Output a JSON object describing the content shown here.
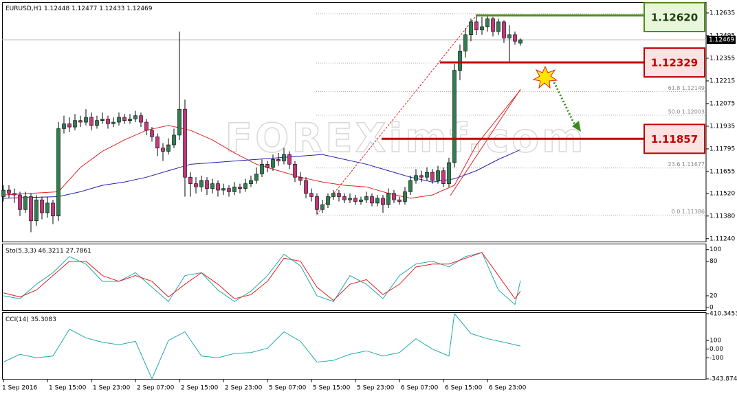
{
  "chart_data": [
    {
      "type": "candlestick",
      "title": "EURUSD,H1",
      "watermark": "FOREXimf.com",
      "ylim": [
        1.11222,
        1.12694
      ],
      "yticks": [
        1.12635,
        1.12495,
        1.12355,
        1.12215,
        1.12075,
        1.11935,
        1.11795,
        1.11655,
        {
          "value": 1.1152,
          "label": "1.11520"
        },
        {
          "value": 1.1138,
          "label": "1.11380"
        },
        {
          "value": 1.1124,
          "label": "1.11240"
        }
      ],
      "up_color": "#2e7d4f",
      "down_color": "#c8357a",
      "ohlc": [
        [
          1.115,
          1.1157,
          1.1147,
          1.1154
        ],
        [
          1.1154,
          1.1157,
          1.1149,
          1.1152
        ],
        [
          1.1152,
          1.1155,
          1.1146,
          1.1151
        ],
        [
          1.1151,
          1.1153,
          1.1138,
          1.1142
        ],
        [
          1.1142,
          1.1153,
          1.114,
          1.115
        ],
        [
          1.115,
          1.1152,
          1.1128,
          1.1135
        ],
        [
          1.1135,
          1.1151,
          1.1132,
          1.1148
        ],
        [
          1.1148,
          1.115,
          1.1136,
          1.114
        ],
        [
          1.114,
          1.115,
          1.1137,
          1.1146
        ],
        [
          1.1146,
          1.1148,
          1.1133,
          1.1138
        ],
        [
          1.1138,
          1.1196,
          1.1135,
          1.1192
        ],
        [
          1.1192,
          1.12,
          1.1189,
          1.1195
        ],
        [
          1.1195,
          1.1199,
          1.119,
          1.1193
        ],
        [
          1.1193,
          1.1201,
          1.1191,
          1.1197
        ],
        [
          1.1197,
          1.12,
          1.1193,
          1.1196
        ],
        [
          1.1196,
          1.1204,
          1.1194,
          1.1199
        ],
        [
          1.1199,
          1.1202,
          1.1191,
          1.1194
        ],
        [
          1.1194,
          1.12,
          1.1192,
          1.1197
        ],
        [
          1.1197,
          1.1202,
          1.1195,
          1.1198
        ],
        [
          1.1198,
          1.12,
          1.1192,
          1.1195
        ],
        [
          1.1195,
          1.1199,
          1.1193,
          1.1196
        ],
        [
          1.1196,
          1.1202,
          1.1194,
          1.1199
        ],
        [
          1.1199,
          1.1201,
          1.1195,
          1.1197
        ],
        [
          1.1197,
          1.1201,
          1.1195,
          1.1198
        ],
        [
          1.1198,
          1.1203,
          1.1196,
          1.12
        ],
        [
          1.12,
          1.1202,
          1.1193,
          1.1196
        ],
        [
          1.1196,
          1.1198,
          1.1188,
          1.1191
        ],
        [
          1.1191,
          1.1193,
          1.1184,
          1.1187
        ],
        [
          1.1187,
          1.1189,
          1.1175,
          1.118
        ],
        [
          1.118,
          1.1183,
          1.1172,
          1.1178
        ],
        [
          1.1178,
          1.1186,
          1.1176,
          1.1182
        ],
        [
          1.1182,
          1.1192,
          1.118,
          1.1188
        ],
        [
          1.1188,
          1.1252,
          1.1185,
          1.1204
        ],
        [
          1.1204,
          1.121,
          1.115,
          1.1162
        ],
        [
          1.1162,
          1.1165,
          1.115,
          1.1158
        ],
        [
          1.1158,
          1.1162,
          1.1152,
          1.1156
        ],
        [
          1.1156,
          1.1163,
          1.1153,
          1.116
        ],
        [
          1.116,
          1.1162,
          1.1151,
          1.1155
        ],
        [
          1.1155,
          1.1161,
          1.1152,
          1.1158
        ],
        [
          1.1158,
          1.116,
          1.115,
          1.1154
        ],
        [
          1.1154,
          1.1158,
          1.1151,
          1.1155
        ],
        [
          1.1155,
          1.1157,
          1.115,
          1.1153
        ],
        [
          1.1153,
          1.1159,
          1.1151,
          1.1156
        ],
        [
          1.1156,
          1.1158,
          1.1152,
          1.1155
        ],
        [
          1.1155,
          1.1161,
          1.1153,
          1.1158
        ],
        [
          1.1158,
          1.1163,
          1.1156,
          1.116
        ],
        [
          1.116,
          1.1168,
          1.1158,
          1.1164
        ],
        [
          1.1164,
          1.1173,
          1.1162,
          1.117
        ],
        [
          1.117,
          1.1172,
          1.1165,
          1.1168
        ],
        [
          1.1168,
          1.1176,
          1.1166,
          1.1173
        ],
        [
          1.1173,
          1.1177,
          1.1169,
          1.1172
        ],
        [
          1.1172,
          1.118,
          1.117,
          1.1176
        ],
        [
          1.1176,
          1.1178,
          1.1167,
          1.117
        ],
        [
          1.117,
          1.1172,
          1.1159,
          1.1162
        ],
        [
          1.1162,
          1.1165,
          1.1157,
          1.116
        ],
        [
          1.116,
          1.1162,
          1.1149,
          1.1152
        ],
        [
          1.1152,
          1.1155,
          1.1147,
          1.115
        ],
        [
          1.115,
          1.1152,
          1.1139,
          1.1142
        ],
        [
          1.1142,
          1.1148,
          1.114,
          1.1145
        ],
        [
          1.1145,
          1.1152,
          1.1143,
          1.115
        ],
        [
          1.115,
          1.1154,
          1.1148,
          1.1152
        ],
        [
          1.1152,
          1.1154,
          1.1147,
          1.115
        ],
        [
          1.115,
          1.1152,
          1.1146,
          1.1148
        ],
        [
          1.1148,
          1.1152,
          1.1146,
          1.1149
        ],
        [
          1.1149,
          1.1151,
          1.1145,
          1.1147
        ],
        [
          1.1147,
          1.115,
          1.1145,
          1.1148
        ],
        [
          1.1148,
          1.1153,
          1.1146,
          1.115
        ],
        [
          1.115,
          1.1152,
          1.1144,
          1.1146
        ],
        [
          1.1146,
          1.1151,
          1.1144,
          1.1149
        ],
        [
          1.1149,
          1.1151,
          1.114,
          1.1145
        ],
        [
          1.1145,
          1.1155,
          1.1143,
          1.1152
        ],
        [
          1.1152,
          1.1154,
          1.1146,
          1.1148
        ],
        [
          1.1148,
          1.115,
          1.1145,
          1.1147
        ],
        [
          1.1147,
          1.1156,
          1.1145,
          1.1153
        ],
        [
          1.1153,
          1.1163,
          1.1151,
          1.116
        ],
        [
          1.116,
          1.1167,
          1.1158,
          1.1163
        ],
        [
          1.1163,
          1.1166,
          1.1159,
          1.1162
        ],
        [
          1.1162,
          1.1168,
          1.116,
          1.1165
        ],
        [
          1.1165,
          1.1167,
          1.1158,
          1.116
        ],
        [
          1.116,
          1.1169,
          1.1158,
          1.1166
        ],
        [
          1.1166,
          1.1168,
          1.1156,
          1.1158
        ],
        [
          1.1158,
          1.1174,
          1.1156,
          1.1171
        ],
        [
          1.1171,
          1.1232,
          1.1168,
          1.1228
        ],
        [
          1.1228,
          1.1244,
          1.1222,
          1.124
        ],
        [
          1.124,
          1.1254,
          1.1236,
          1.125
        ],
        [
          1.125,
          1.126,
          1.1246,
          1.1258
        ],
        [
          1.1258,
          1.1262,
          1.125,
          1.1253
        ],
        [
          1.1253,
          1.1261,
          1.125,
          1.1255
        ],
        [
          1.1255,
          1.1262,
          1.1252,
          1.126
        ],
        [
          1.126,
          1.1261,
          1.1249,
          1.1252
        ],
        [
          1.1252,
          1.126,
          1.125,
          1.1258
        ],
        [
          1.1258,
          1.1259,
          1.1245,
          1.1248
        ],
        [
          1.1248,
          1.1256,
          1.1233,
          1.125
        ],
        [
          1.125,
          1.1252,
          1.1244,
          1.1246
        ],
        [
          1.12448,
          1.12477,
          1.12433,
          1.12469
        ]
      ],
      "ma_x": [
        0,
        10,
        14,
        18,
        22,
        26,
        30,
        34,
        38,
        42,
        46,
        50,
        54,
        58,
        62,
        66,
        70,
        74,
        78,
        82,
        86,
        90,
        94
      ],
      "series": [
        {
          "color": "#e02020",
          "values": [
            1.1151,
            1.1153,
            1.1168,
            1.1178,
            1.1185,
            1.1191,
            1.1194,
            1.1191,
            1.1185,
            1.1177,
            1.117,
            1.1166,
            1.1162,
            1.1159,
            1.1157,
            1.1156,
            1.1152,
            1.1149,
            1.1151,
            1.1157,
            1.1182,
            1.1199,
            1.1216
          ]
        },
        {
          "color": "#2020b0",
          "values": [
            1.1149,
            1.115,
            1.1153,
            1.1157,
            1.1159,
            1.1162,
            1.1166,
            1.117,
            1.1171,
            1.1172,
            1.1173,
            1.1174,
            1.1175,
            1.1176,
            1.1173,
            1.117,
            1.1166,
            1.1162,
            1.1159,
            1.1161,
            1.1166,
            1.1173,
            1.1179
          ]
        }
      ],
      "fib_levels": [
        {
          "value": 1.12149,
          "label": "61.8 1.12149"
        },
        {
          "value": 1.12003,
          "label": "50.0 1.12003"
        },
        {
          "value": 1.11677,
          "label": "23.6 1.11677"
        },
        {
          "value": 1.11386,
          "label": "0.0 1.11386"
        }
      ],
      "annotations": [
        {
          "value": 1.1262,
          "label": "1.12620",
          "color": "#4f8a1e",
          "fill": "#e8f6dc"
        },
        {
          "value": 1.12329,
          "label": "1.12329",
          "color": "#c00000",
          "fill": "#fde2e2"
        },
        {
          "value": 1.11857,
          "label": "1.11857",
          "color": "#c00000",
          "fill": "#fde2e2"
        }
      ]
    },
    {
      "type": "line",
      "title": "Sto(5,3,3)",
      "ylim": [
        -5,
        108
      ],
      "yticks": [
        100,
        80,
        20,
        0
      ],
      "x": [
        0,
        3,
        6,
        9,
        12,
        15,
        18,
        21,
        24,
        27,
        30,
        33,
        36,
        39,
        42,
        45,
        48,
        51,
        54,
        57,
        60,
        63,
        66,
        69,
        72,
        75,
        78,
        81,
        84,
        87,
        90,
        93,
        94
      ],
      "series": [
        {
          "color": "#20a8b0",
          "values": [
            20,
            15,
            40,
            60,
            88,
            75,
            45,
            45,
            60,
            35,
            10,
            55,
            60,
            30,
            10,
            28,
            55,
            92,
            72,
            20,
            10,
            55,
            40,
            15,
            55,
            75,
            80,
            70,
            88,
            95,
            30,
            5,
            46.3211
          ]
        },
        {
          "color": "#e02020",
          "values": [
            25,
            18,
            30,
            55,
            80,
            80,
            55,
            45,
            55,
            45,
            18,
            40,
            60,
            40,
            15,
            22,
            45,
            85,
            80,
            35,
            12,
            40,
            48,
            22,
            40,
            70,
            75,
            75,
            85,
            95,
            55,
            15,
            27.7861
          ]
        }
      ]
    },
    {
      "type": "line",
      "title": "CCI(14)",
      "ylim": [
        -343.8741,
        410.3453
      ],
      "yticks": [
        410.3453,
        100,
        {
          "value": 0,
          "label": "0.00"
        },
        -100,
        -343.8741
      ],
      "x": [
        0,
        3,
        6,
        9,
        12,
        15,
        18,
        21,
        24,
        27,
        30,
        33,
        36,
        39,
        42,
        45,
        48,
        51,
        54,
        57,
        60,
        63,
        66,
        69,
        72,
        75,
        78,
        81,
        82,
        85,
        88,
        91,
        94
      ],
      "series": [
        {
          "color": "#20a8b0",
          "values": [
            -150,
            -60,
            -100,
            -80,
            230,
            130,
            80,
            50,
            90,
            -343.8741,
            100,
            200,
            -80,
            -100,
            -50,
            -40,
            10,
            200,
            90,
            -150,
            -130,
            -60,
            -20,
            -80,
            -40,
            120,
            0,
            -80,
            410.3453,
            180,
            120,
            80,
            35.3083
          ]
        }
      ],
      "xticks": [
        {
          "value": 0,
          "label": "1 Sep 2016"
        },
        {
          "value": 8,
          "label": "1 Sep 15:00"
        },
        {
          "value": 16,
          "label": "1 Sep 23:00"
        },
        {
          "value": 24,
          "label": "2 Sep 07:00"
        },
        {
          "value": 32,
          "label": "2 Sep 15:00"
        },
        {
          "value": 40,
          "label": "2 Sep 23:00"
        },
        {
          "value": 48,
          "label": "5 Sep 07:00"
        },
        {
          "value": 56,
          "label": "5 Sep 15:00"
        },
        {
          "value": 64,
          "label": "5 Sep 23:00"
        },
        {
          "value": 72,
          "label": "6 Sep 07:00"
        },
        {
          "value": 80,
          "label": "6 Sep 15:00"
        },
        {
          "value": 88,
          "label": "6 Sep 23:00"
        }
      ]
    }
  ]
}
